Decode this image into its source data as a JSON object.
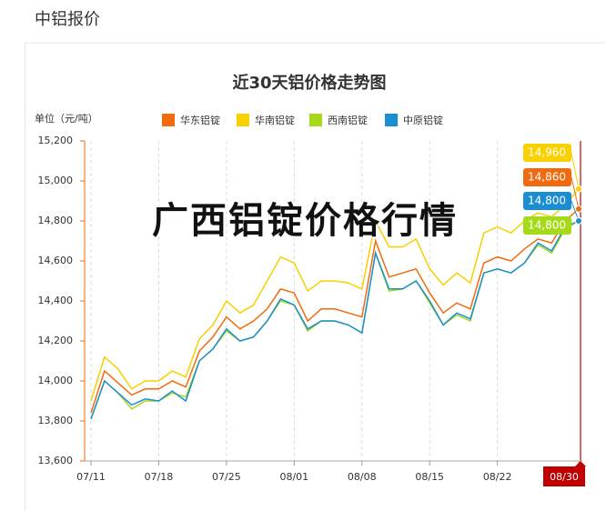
{
  "header": {
    "title": "中铝报价"
  },
  "chart_data": {
    "type": "line",
    "title": "近30天铝价格走势图",
    "y_label": "单位（元/吨）",
    "overlay_text": "广西铝锭价格行情",
    "categories": [
      "07/11",
      null,
      null,
      null,
      null,
      "07/18",
      null,
      null,
      null,
      null,
      "07/25",
      null,
      null,
      null,
      null,
      "08/01",
      null,
      null,
      null,
      null,
      "08/08",
      null,
      null,
      null,
      null,
      "08/15",
      null,
      null,
      null,
      null,
      "08/22",
      null,
      null,
      null,
      null,
      null,
      "08/30"
    ],
    "ylim": [
      13600,
      15200
    ],
    "yticks": [
      {
        "value": 13600,
        "label": "13,600"
      },
      {
        "value": 13800,
        "label": "13,800"
      },
      {
        "value": 14000,
        "label": "14,000"
      },
      {
        "value": 14200,
        "label": "14,200"
      },
      {
        "value": 14400,
        "label": "14,400"
      },
      {
        "value": 14600,
        "label": "14,600"
      },
      {
        "value": 14800,
        "label": "14,800"
      },
      {
        "value": 15000,
        "label": "15,000"
      },
      {
        "value": 15200,
        "label": "15,200"
      }
    ],
    "grid": true,
    "series": [
      {
        "name": "华东铝锭",
        "color": "#f26a0f",
        "values": [
          13840,
          14050,
          13990,
          13930,
          13960,
          13960,
          14000,
          13970,
          14150,
          14220,
          14320,
          14260,
          14300,
          14360,
          14460,
          14440,
          14300,
          14360,
          14360,
          14340,
          14320,
          14700,
          14520,
          14540,
          14560,
          14440,
          14340,
          14390,
          14360,
          14590,
          14620,
          14600,
          14660,
          14710,
          14690,
          14800,
          14860
        ],
        "value_labels": [
          null,
          null,
          null,
          null,
          null,
          null,
          null,
          null,
          null,
          null,
          null,
          null,
          null,
          null,
          null,
          null,
          null,
          null,
          null,
          null,
          null,
          null,
          null,
          null,
          null,
          null,
          null,
          null,
          null,
          null,
          null,
          null,
          null,
          null,
          null,
          null,
          "14,860"
        ]
      },
      {
        "name": "华南铝锭",
        "color": "#f9d000",
        "values": [
          13900,
          14120,
          14060,
          13960,
          14000,
          14000,
          14050,
          14020,
          14210,
          14280,
          14400,
          14340,
          14380,
          14500,
          14620,
          14590,
          14450,
          14500,
          14500,
          14490,
          14460,
          14800,
          14670,
          14670,
          14710,
          14560,
          14480,
          14540,
          14490,
          14740,
          14770,
          14740,
          14800,
          14840,
          14820,
          14880,
          14960
        ],
        "value_labels": [
          null,
          null,
          null,
          null,
          null,
          null,
          null,
          null,
          null,
          null,
          null,
          null,
          null,
          null,
          null,
          null,
          null,
          null,
          null,
          null,
          null,
          null,
          null,
          null,
          null,
          null,
          null,
          null,
          null,
          null,
          null,
          null,
          null,
          null,
          null,
          null,
          "14,960"
        ]
      },
      {
        "name": "西南铝锭",
        "color": "#a5d91a",
        "values": [
          13810,
          14000,
          13940,
          13860,
          13900,
          13900,
          13940,
          13920,
          14100,
          14160,
          14250,
          14200,
          14220,
          14300,
          14400,
          14380,
          14250,
          14300,
          14300,
          14280,
          14240,
          14640,
          14450,
          14460,
          14500,
          14390,
          14280,
          14330,
          14300,
          14540,
          14560,
          14540,
          14590,
          14680,
          14640,
          14760,
          14800
        ],
        "value_labels": [
          null,
          null,
          null,
          null,
          null,
          null,
          null,
          null,
          null,
          null,
          null,
          null,
          null,
          null,
          null,
          null,
          null,
          null,
          null,
          null,
          null,
          null,
          null,
          null,
          null,
          null,
          null,
          null,
          null,
          null,
          null,
          null,
          null,
          null,
          null,
          null,
          "14,800"
        ]
      },
      {
        "name": "中原铝锭",
        "color": "#1a8ed1",
        "values": [
          13810,
          14000,
          13940,
          13880,
          13910,
          13900,
          13950,
          13900,
          14100,
          14160,
          14260,
          14200,
          14220,
          14300,
          14410,
          14380,
          14260,
          14300,
          14300,
          14280,
          14240,
          14640,
          14460,
          14460,
          14500,
          14400,
          14280,
          14340,
          14310,
          14540,
          14560,
          14540,
          14590,
          14690,
          14650,
          14770,
          14800
        ],
        "value_labels": [
          null,
          null,
          null,
          null,
          null,
          null,
          null,
          null,
          null,
          null,
          null,
          null,
          null,
          null,
          null,
          null,
          null,
          null,
          null,
          null,
          null,
          null,
          null,
          null,
          null,
          null,
          null,
          null,
          null,
          null,
          null,
          null,
          null,
          null,
          null,
          null,
          "14,800"
        ]
      }
    ]
  }
}
